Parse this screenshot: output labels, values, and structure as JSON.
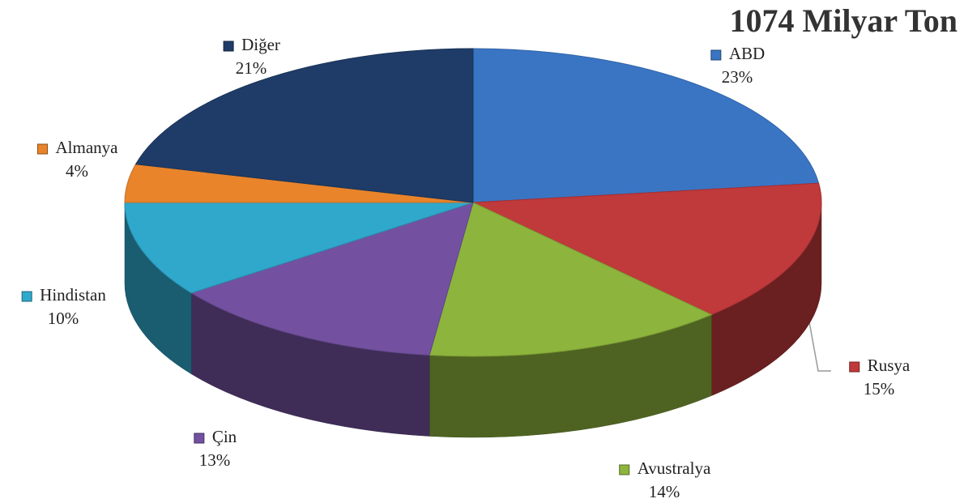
{
  "chart_data": {
    "type": "pie",
    "title": "1074 Milyar Ton",
    "categories": [
      "ABD",
      "Rusya",
      "Avustralya",
      "Çin",
      "Hindistan",
      "Almanya",
      "Diğer"
    ],
    "values": [
      23,
      15,
      14,
      13,
      10,
      4,
      21
    ],
    "value_labels": [
      "23%",
      "15%",
      "14%",
      "13%",
      "10%",
      "4%",
      "21%"
    ],
    "colors": [
      "#3a75c4",
      "#c0393b",
      "#8db43c",
      "#7351a0",
      "#2fa8cc",
      "#e9842a",
      "#1f3c68"
    ]
  }
}
